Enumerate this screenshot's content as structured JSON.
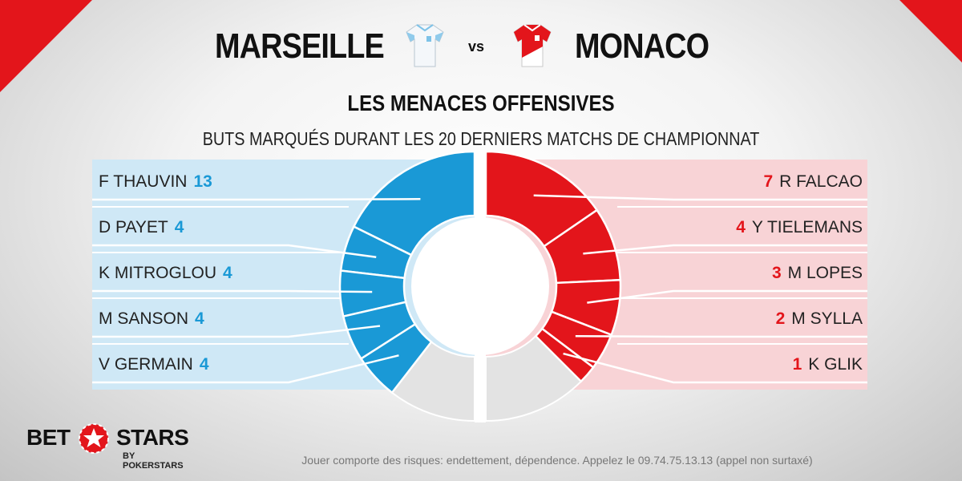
{
  "header": {
    "home_team": "MARSEILLE",
    "vs": "vs",
    "away_team": "MONACO"
  },
  "title": "LES MENACES OFFENSIVES",
  "subtitle": "BUTS MARQUÉS DURANT LES 20 DERNIERS MATCHS DE CHAMPIONNAT",
  "colors": {
    "home": "#1a99d6",
    "away": "#e3151b",
    "other": "#e3e3e3",
    "brand_red": "#e3151b"
  },
  "chart_data": {
    "type": "pie",
    "title": "LES MENACES OFFENSIVES",
    "subtitle": "BUTS MARQUÉS DURANT LES 20 DERNIERS MATCHS DE CHAMPIONNAT",
    "series": [
      {
        "name": "MARSEILLE",
        "side": "left",
        "players": [
          {
            "name": "F THAUVIN",
            "goals": 13
          },
          {
            "name": "D PAYET",
            "goals": 4
          },
          {
            "name": "K MITROGLOU",
            "goals": 4
          },
          {
            "name": "M SANSON",
            "goals": 4
          },
          {
            "name": "V GERMAIN",
            "goals": 4
          }
        ],
        "top5_share": 0.79
      },
      {
        "name": "MONACO",
        "side": "right",
        "players": [
          {
            "name": "R FALCAO",
            "goals": 7
          },
          {
            "name": "Y TIELEMANS",
            "goals": 4
          },
          {
            "name": "M LOPES",
            "goals": 3
          },
          {
            "name": "M SYLLA",
            "goals": 2
          },
          {
            "name": "K GLIK",
            "goals": 1
          }
        ],
        "top5_share": 0.75
      }
    ]
  },
  "brand": {
    "word_left": "BET",
    "word_right": "STARS",
    "sub": "BY POKERSTARS"
  },
  "disclaimer": "Jouer comporte des risques: endettement, dépendence. Appelez le 09.74.75.13.13 (appel non surtaxé)"
}
